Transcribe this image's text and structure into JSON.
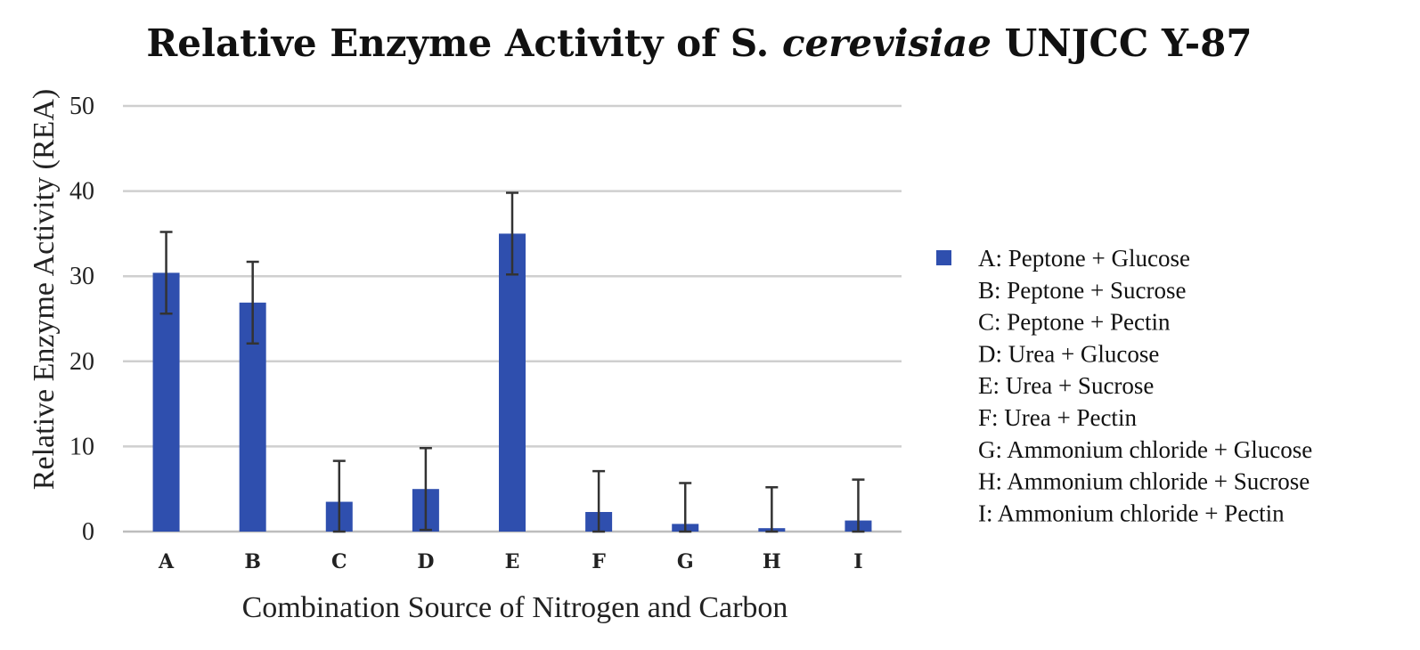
{
  "chart_data": {
    "type": "bar",
    "title_parts": [
      "Relative Enzyme Activity of S. ",
      "cerevisiae",
      " UNJCC Y-87"
    ],
    "xlabel": "Combination Source of Nitrogen and Carbon",
    "ylabel": "Relative Enzyme Activity (REA)",
    "ylim": [
      0,
      50
    ],
    "yticks": [
      "0",
      "10",
      "20",
      "30",
      "40",
      "50"
    ],
    "categories": [
      "A",
      "B",
      "C",
      "D",
      "E",
      "F",
      "G",
      "H",
      "I"
    ],
    "series": [
      {
        "values": [
          30.4,
          26.9,
          3.5,
          5.0,
          35.0,
          2.3,
          0.9,
          0.4,
          1.3
        ],
        "error": [
          4.8,
          4.8,
          4.8,
          4.8,
          4.8,
          4.8,
          4.8,
          4.8,
          4.8
        ],
        "color": "#2f4fae"
      }
    ],
    "legend": {
      "placement": "right",
      "entries": [
        "A: Peptone + Glucose",
        "B: Peptone + Sucrose",
        "C: Peptone + Pectin",
        "D: Urea + Glucose",
        "E: Urea + Sucrose",
        "F: Urea + Pectin",
        "G: Ammonium chloride + Glucose",
        "H: Ammonium chloride + Sucrose",
        "I: Ammonium chloride + Pectin"
      ]
    },
    "grid": true
  }
}
